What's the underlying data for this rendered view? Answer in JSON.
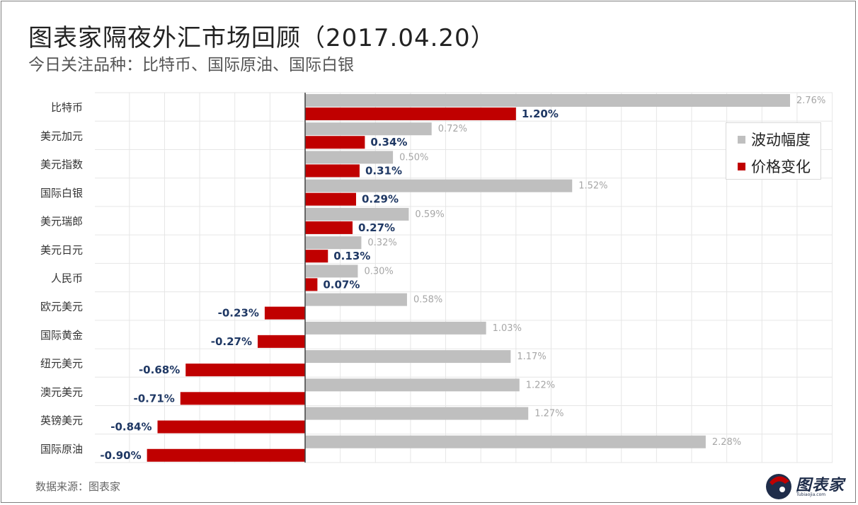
{
  "title": "图表家隔夜外汇市场回顾（2017.04.20）",
  "subtitle": "今日关注品种：比特币、国际原油、国际白银",
  "source": "数据来源：图表家",
  "logo_text": "图表家",
  "logo_sub": "Tubiaojia.com",
  "colors": {
    "volatility": "#bfbfbf",
    "change": "#c00000",
    "change_label": "#1f3864",
    "volatility_label": "#a6a6a6"
  },
  "chart_data": {
    "type": "bar",
    "orientation": "horizontal",
    "categories": [
      "比特币",
      "美元加元",
      "美元指数",
      "国际白银",
      "美元瑞郎",
      "美元日元",
      "人民币",
      "欧元美元",
      "国际黄金",
      "纽元美元",
      "澳元美元",
      "英镑美元",
      "国际原油"
    ],
    "series": [
      {
        "name": "波动幅度",
        "values": [
          2.76,
          0.72,
          0.5,
          1.52,
          0.59,
          0.32,
          0.3,
          0.58,
          1.03,
          1.17,
          1.22,
          1.27,
          2.28
        ],
        "labels": [
          "2.76%",
          "0.72%",
          "0.50%",
          "1.52%",
          "0.59%",
          "0.32%",
          "0.30%",
          "0.58%",
          "1.03%",
          "1.17%",
          "1.22%",
          "1.27%",
          "2.28%"
        ]
      },
      {
        "name": "价格变化",
        "values": [
          1.2,
          0.34,
          0.31,
          0.29,
          0.27,
          0.13,
          0.07,
          -0.23,
          -0.27,
          -0.68,
          -0.71,
          -0.84,
          -0.9
        ],
        "labels": [
          "1.20%",
          "0.34%",
          "0.31%",
          "0.29%",
          "0.27%",
          "0.13%",
          "0.07%",
          "-0.23%",
          "-0.27%",
          "-0.68%",
          "-0.71%",
          "-0.84%",
          "-0.90%"
        ]
      }
    ],
    "xlim": [
      -1.2,
      3.0
    ],
    "grid": true,
    "legend_position": "top-right"
  }
}
